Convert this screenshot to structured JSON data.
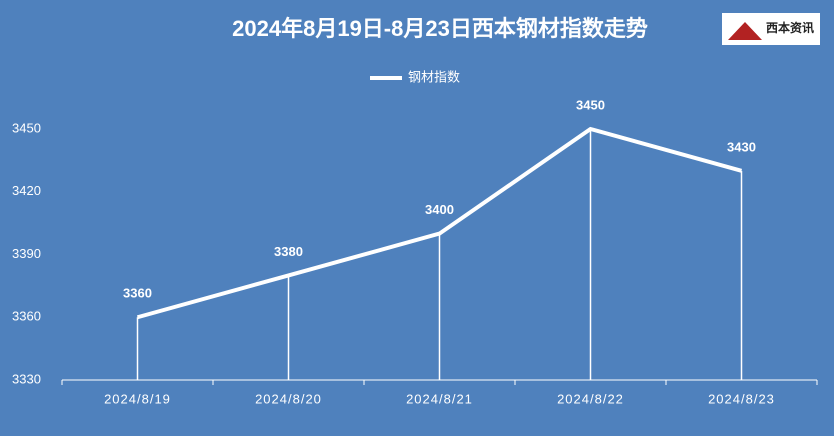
{
  "chart_data": {
    "type": "line",
    "title": "2024年8月19日-8月23日西本钢材指数走势",
    "logo_text": "西本资讯",
    "categories": [
      "2024/8/19",
      "2024/8/20",
      "2024/8/21",
      "2024/8/22",
      "2024/8/23"
    ],
    "series": [
      {
        "name": "钢材指数",
        "color": "#ffffff",
        "values": [
          3360,
          3380,
          3400,
          3450,
          3430
        ]
      }
    ],
    "ylim": [
      3330,
      3450
    ],
    "yticks": [
      3330,
      3360,
      3390,
      3420,
      3450
    ],
    "legend": "top",
    "background": "#4f81bd",
    "drop_lines": true
  }
}
